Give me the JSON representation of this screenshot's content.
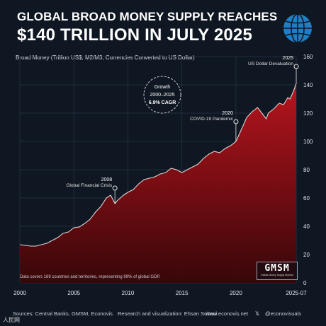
{
  "header": {
    "title_line1": "GLOBAL BROAD MONEY SUPPLY REACHES",
    "title_line2": "$140 TRILLION IN JULY 2025",
    "subtitle": "Broad Money (Trillion US$, M2/M3, Currencies Converted to US Dollar)"
  },
  "logo": {
    "icon": "globe-icon",
    "color": "#1f7fc4"
  },
  "note": "Data covers 169 countries and territories, representing 99% of global GDP.",
  "badge": {
    "title": "GMSM",
    "subtitle": "Global Money Supply Monitor"
  },
  "footer": {
    "source": "Sources: Central Banks, GMSM, Econovis",
    "credit": "Research and visualization: Ehsan Soltani",
    "website": "www.econovis.net",
    "handle": "@econovisuals"
  },
  "watermark": "人民网",
  "colors": {
    "background": "#0f1722",
    "area_top": "#c0141d",
    "area_bottom": "#3a0608",
    "line": "#d8d8d8"
  },
  "chart_data": {
    "type": "area",
    "ylim": [
      0,
      160
    ],
    "yticks": [
      0,
      20,
      40,
      60,
      80,
      100,
      120,
      140,
      160
    ],
    "xlim": [
      2000,
      2025.583
    ],
    "xticks": [
      2000,
      2005,
      2010,
      2015,
      2020
    ],
    "xtick_labels": [
      "2000",
      "2005",
      "2010",
      "2015",
      "2020"
    ],
    "last_tick_label": "2025-07",
    "grid": true,
    "series": [
      {
        "x": [
          2000,
          2000.5,
          2001,
          2001.5,
          2002,
          2002.5,
          2003,
          2003.5,
          2004,
          2004.5,
          2005,
          2005.5,
          2006,
          2006.5,
          2007,
          2007.5,
          2008,
          2008.4,
          2008.8,
          2009,
          2009.3,
          2009.6,
          2010,
          2010.5,
          2011,
          2011.5,
          2012,
          2012.5,
          2013,
          2013.5,
          2014,
          2014.5,
          2015,
          2015.5,
          2016,
          2016.5,
          2017,
          2017.5,
          2018,
          2018.5,
          2019,
          2019.5,
          2020,
          2020.3,
          2020.6,
          2021,
          2021.5,
          2022,
          2022.5,
          2022.8,
          2023,
          2023.5,
          2024,
          2024.4,
          2024.8,
          2025,
          2025.3,
          2025.583
        ],
        "values": [
          27,
          26.5,
          26,
          26,
          27,
          28,
          30,
          32,
          35,
          36,
          39,
          39.5,
          42,
          45,
          50,
          54,
          60,
          62,
          56,
          58,
          60,
          62,
          64,
          66,
          70,
          73,
          74,
          75,
          77,
          78,
          81,
          80,
          78,
          80,
          82,
          84,
          88,
          91,
          93,
          92,
          95,
          97,
          100,
          105,
          110,
          117,
          121,
          124,
          119,
          116,
          120,
          123,
          127,
          126,
          131,
          130,
          135,
          141
        ]
      }
    ],
    "annotations": [
      {
        "year_label": "2008",
        "text": "Global Financial Crisis",
        "x": 2008.8,
        "y": 56
      },
      {
        "year_label": "2020",
        "text": "COVID-19 Pandemic",
        "x": 2020.0,
        "y": 100
      },
      {
        "year_label": "2025",
        "text": "US Dollar Devaluation",
        "x": 2025.583,
        "y": 141
      }
    ],
    "growth_note": {
      "line1": "Growth",
      "line2": "2000–2025",
      "line3": "6.9% CAGR"
    }
  }
}
